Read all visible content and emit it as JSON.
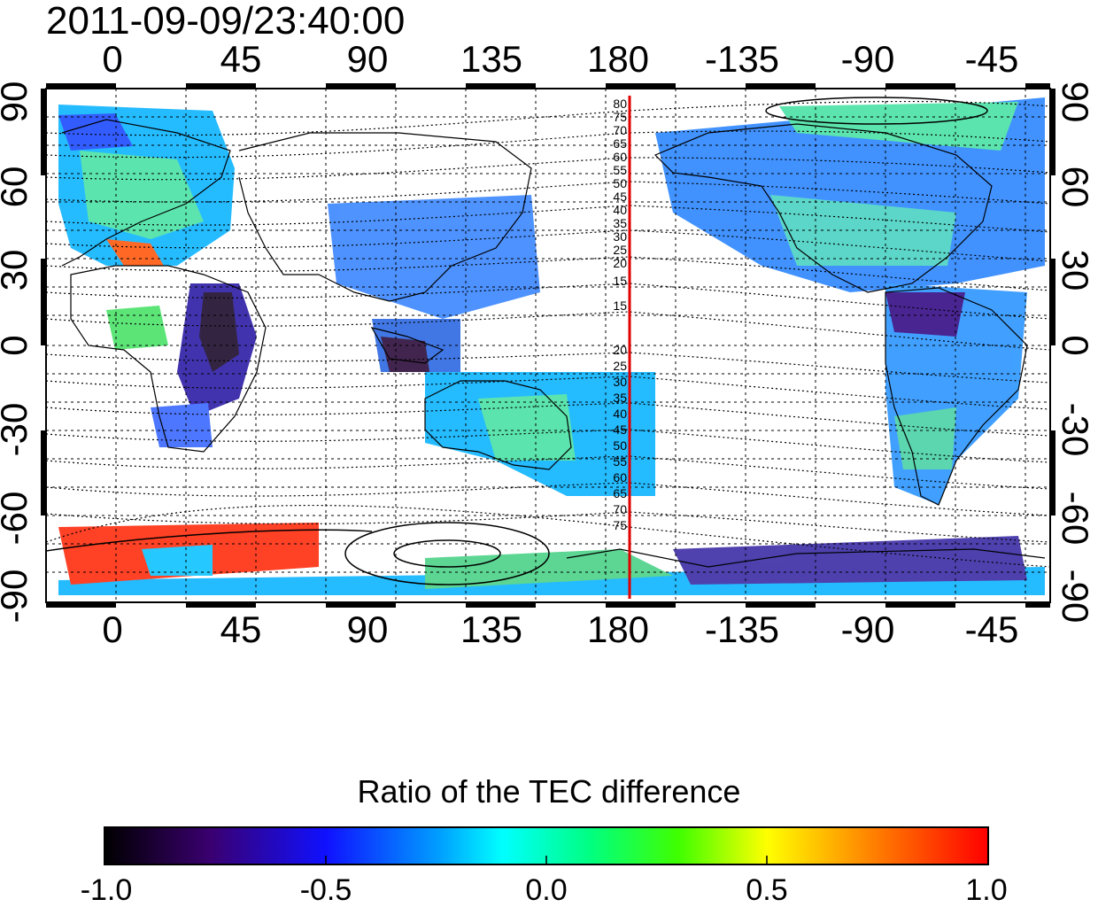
{
  "title": "2011-09-09/23:40:00",
  "colorbar": {
    "title": "Ratio of the TEC difference",
    "min": -1.0,
    "max": 1.0,
    "tick_labels": [
      "-1.0",
      "-0.5",
      "0.0",
      "0.5",
      "1.0"
    ]
  },
  "map": {
    "longitude_tick_labels": [
      "0",
      "45",
      "90",
      "135",
      "180",
      "-135",
      "-90",
      "-45"
    ],
    "latitude_tick_labels": [
      "90",
      "60",
      "30",
      "0",
      "-30",
      "-60",
      "-90"
    ],
    "longitude_range": [
      -20,
      340
    ],
    "latitude_range": [
      -90,
      90
    ],
    "red_line_longitude": 183,
    "grid": true,
    "projection": "equirectangular",
    "contour_labels": [
      "80",
      "75",
      "70",
      "65",
      "60",
      "55",
      "50",
      "45",
      "40",
      "35",
      "30",
      "25",
      "20",
      "15",
      "15",
      "20",
      "25",
      "30",
      "35",
      "40",
      "45",
      "50",
      "55",
      "60",
      "65",
      "70",
      "75"
    ],
    "colors": {
      "line": "#e00000",
      "colormap": [
        "#000000",
        "#3a0070",
        "#1010ff",
        "#00a0ff",
        "#00ffff",
        "#00ff80",
        "#40ff00",
        "#ffff00",
        "#ff8000",
        "#ff0000"
      ]
    }
  }
}
